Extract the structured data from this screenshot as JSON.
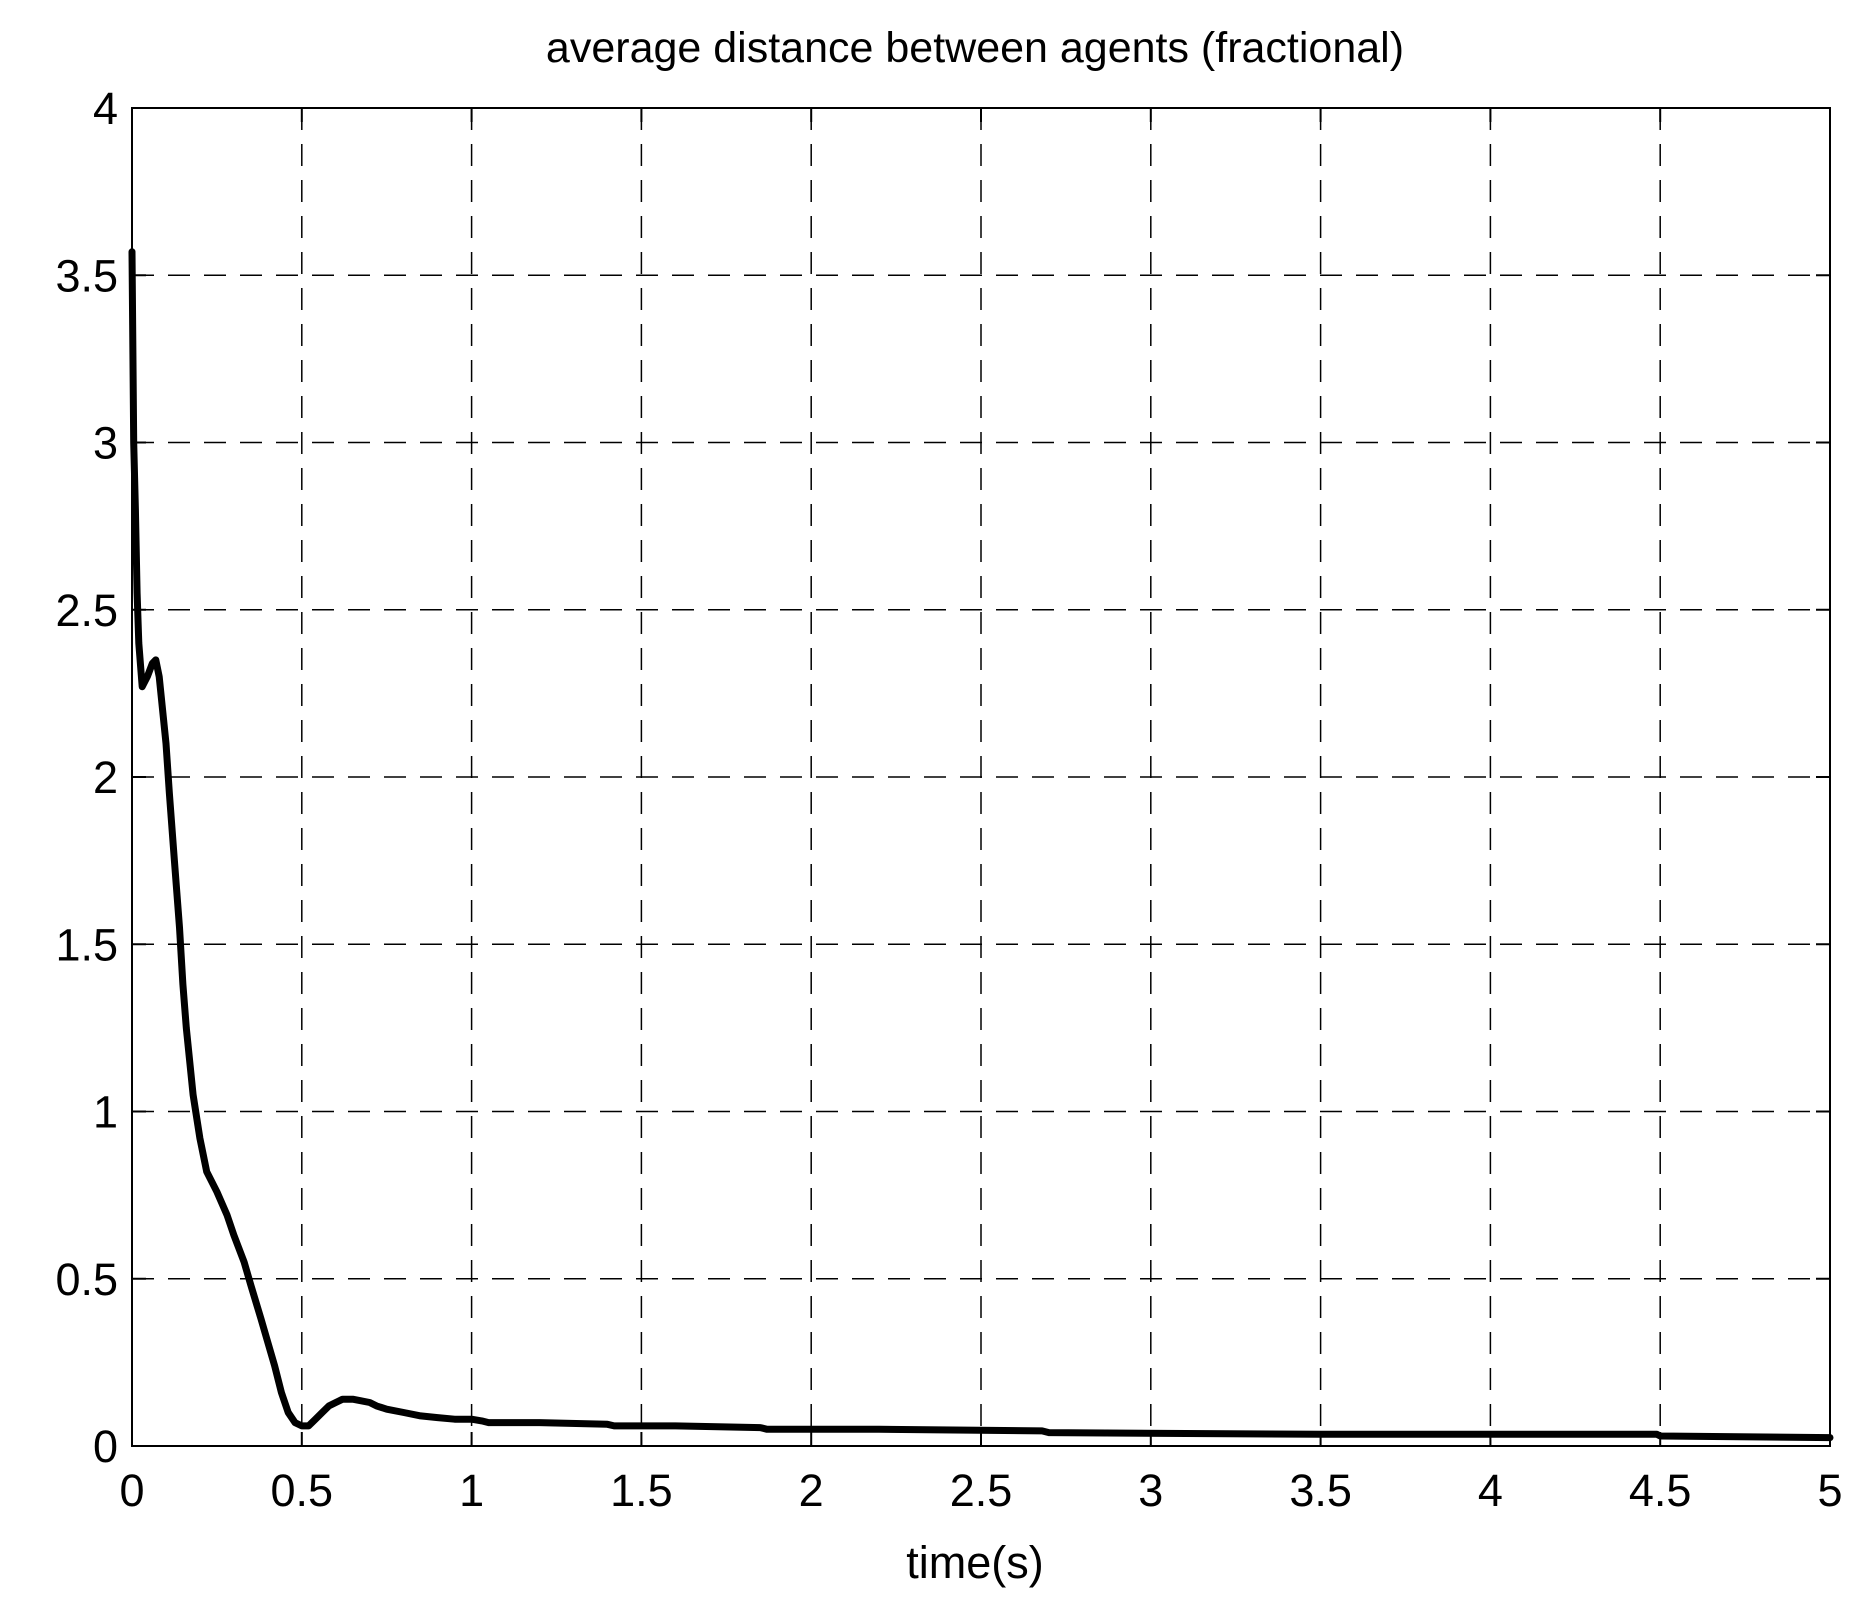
{
  "chart_data": {
    "type": "line",
    "title": "average distance between agents (fractional)",
    "xlabel": "time(s)",
    "ylabel": "",
    "xlim": [
      0,
      5
    ],
    "ylim": [
      0,
      4
    ],
    "xticks": [
      "0",
      "0.5",
      "1",
      "1.5",
      "2",
      "2.5",
      "3",
      "3.5",
      "4",
      "4.5",
      "5"
    ],
    "yticks": [
      "0",
      "0.5",
      "1",
      "1.5",
      "2",
      "2.5",
      "3",
      "3.5",
      "4"
    ],
    "grid": true,
    "grid_style": "dashed",
    "line_color": "#000000",
    "series": [
      {
        "x": [
          0,
          0.005,
          0.01,
          0.015,
          0.02,
          0.03,
          0.045,
          0.06,
          0.07,
          0.08,
          0.09,
          0.1,
          0.11,
          0.125,
          0.14,
          0.15,
          0.16,
          0.17,
          0.18,
          0.2,
          0.21,
          0.22,
          0.25,
          0.28,
          0.3,
          0.33,
          0.35,
          0.38,
          0.4,
          0.42,
          0.44,
          0.46,
          0.48,
          0.5,
          0.52,
          0.54,
          0.56,
          0.58,
          0.6,
          0.62,
          0.65,
          0.7,
          0.72,
          0.75,
          0.8,
          0.85,
          0.9,
          0.95,
          1.0,
          1.03,
          1.05,
          1.2,
          1.4,
          1.42,
          1.6,
          1.85,
          1.87,
          2.2,
          2.68,
          2.7,
          3.5,
          4.49,
          4.5,
          5.0
        ],
        "y": [
          3.57,
          3.0,
          2.8,
          2.55,
          2.4,
          2.27,
          2.3,
          2.34,
          2.35,
          2.3,
          2.2,
          2.1,
          1.95,
          1.75,
          1.55,
          1.38,
          1.25,
          1.15,
          1.05,
          0.92,
          0.87,
          0.82,
          0.76,
          0.69,
          0.63,
          0.55,
          0.48,
          0.38,
          0.31,
          0.24,
          0.16,
          0.1,
          0.07,
          0.06,
          0.06,
          0.08,
          0.1,
          0.12,
          0.13,
          0.14,
          0.14,
          0.13,
          0.12,
          0.11,
          0.1,
          0.09,
          0.085,
          0.08,
          0.08,
          0.075,
          0.07,
          0.07,
          0.065,
          0.06,
          0.06,
          0.055,
          0.05,
          0.05,
          0.045,
          0.04,
          0.035,
          0.035,
          0.03,
          0.025
        ]
      }
    ]
  }
}
